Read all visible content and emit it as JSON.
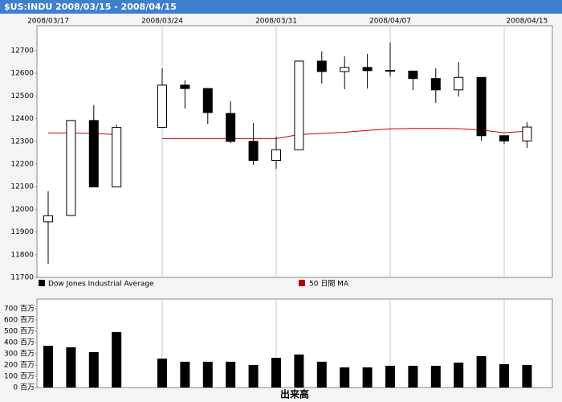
{
  "window_title": "$US:INDU 2008/03/15 - 2008/04/15",
  "chart_data": [
    {
      "type": "candlestick",
      "categories": [
        "2008/03/17",
        null,
        null,
        null,
        null,
        "2008/03/24",
        null,
        null,
        null,
        null,
        "2008/03/31",
        null,
        null,
        null,
        null,
        "2008/04/07",
        null,
        null,
        null,
        null,
        null,
        "2008/04/15"
      ],
      "ohlc": {
        "name": "Dow Jones Industrial Average",
        "color": "#000000",
        "up_color": "#ffffff",
        "down_color": "#000000",
        "open": [
          11945,
          11973,
          12392,
          12099,
          null,
          12361,
          12548,
          12533,
          12423,
          12300,
          12216,
          12263,
          12654,
          12608,
          12626,
          12613,
          12610,
          12577,
          12527,
          12582,
          12325,
          12302
        ],
        "high": [
          12080,
          12392,
          12460,
          12374,
          null,
          12622,
          12569,
          12533,
          12477,
          12381,
          12320,
          12654,
          12697,
          12675,
          12686,
          12735,
          12610,
          12622,
          12650,
          12582,
          12325,
          12384
        ],
        "low": [
          11760,
          11973,
          12099,
          12099,
          null,
          12361,
          12445,
          12377,
          12292,
          12196,
          12179,
          12263,
          12555,
          12530,
          12533,
          12586,
          12526,
          12470,
          12498,
          12303,
          12289,
          12271
        ],
        "close": [
          11972,
          12392,
          12099,
          12361,
          null,
          12548,
          12533,
          12427,
          12300,
          12216,
          12263,
          12654,
          12608,
          12626,
          12612,
          12610,
          12577,
          12527,
          12582,
          12325,
          12302,
          12363
        ]
      },
      "ma": {
        "name": "50 日間 MA",
        "color": "#c00000",
        "values": [
          12337,
          12337,
          12335,
          12330,
          null,
          12312,
          12312,
          12312,
          12312,
          12312,
          12312,
          12330,
          12335,
          12340,
          12348,
          12355,
          12357,
          12357,
          12356,
          12350,
          12338,
          12345
        ]
      },
      "ylim": [
        11700,
        12810
      ],
      "yticks": [
        11700,
        11800,
        11900,
        12000,
        12100,
        12200,
        12300,
        12400,
        12500,
        12600,
        12700
      ],
      "grid": true
    },
    {
      "type": "bar",
      "xlabel": "出来高",
      "values": [
        371,
        357,
        314,
        493,
        null,
        257,
        229,
        229,
        229,
        200,
        264,
        293,
        229,
        179,
        179,
        193,
        193,
        193,
        221,
        279,
        207,
        200
      ],
      "color": "#000000",
      "ylim": [
        0,
        785
      ],
      "yticks": [
        {
          "value": 0,
          "label": "0 百万"
        },
        {
          "value": 100,
          "label": "100 百万"
        },
        {
          "value": 200,
          "label": "200 百万"
        },
        {
          "value": 300,
          "label": "300 百万"
        },
        {
          "value": 400,
          "label": "400 百万"
        },
        {
          "value": 500,
          "label": "500 百万"
        },
        {
          "value": 600,
          "label": "600 百万"
        },
        {
          "value": 700,
          "label": "700 百万"
        }
      ],
      "grid": true
    }
  ]
}
